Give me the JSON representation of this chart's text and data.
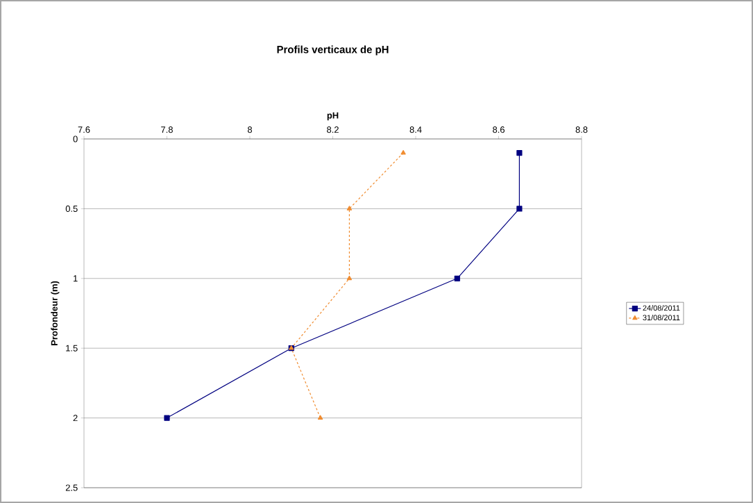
{
  "chart_data": {
    "type": "line",
    "title": "Profils verticaux de pH",
    "xlabel": "pH",
    "ylabel": "Profondeur (m)",
    "xlim": [
      7.6,
      8.8
    ],
    "xticks": [
      7.6,
      7.8,
      8,
      8.2,
      8.4,
      8.6,
      8.8
    ],
    "ylim": [
      2.5,
      0
    ],
    "yticks": [
      0,
      0.5,
      1,
      1.5,
      2,
      2.5
    ],
    "grid": "y",
    "legend": "right",
    "series": [
      {
        "name": "24/08/2011",
        "color": "#000080",
        "marker": "square",
        "line_style": "solid",
        "x": [
          8.65,
          8.65,
          8.5,
          8.1,
          7.8
        ],
        "values": [
          0.1,
          0.5,
          1,
          1.5,
          2
        ]
      },
      {
        "name": "31/08/2011",
        "color": "#f08c30",
        "marker": "triangle",
        "line_style": "dashed",
        "x": [
          8.37,
          8.24,
          8.24,
          8.1,
          8.17
        ],
        "values": [
          0.1,
          0.5,
          1,
          1.5,
          2
        ]
      }
    ]
  }
}
